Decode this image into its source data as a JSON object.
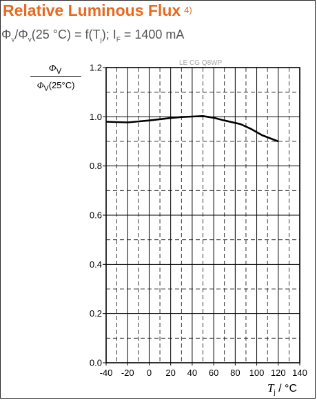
{
  "title": "Relative Luminous Flux",
  "title_footnote": "4)",
  "subtitle_parts": {
    "phi1": "Φ",
    "sub_v1": "v",
    "slash": "/",
    "phi2": "Φ",
    "sub_v2": "v",
    "condition": "(25 °C) = f(T",
    "sub_j": "j",
    "current_prefix": "); I",
    "sub_f": "F",
    "current": " = 1400 mA"
  },
  "watermark": "LE CG Q8WP",
  "y_axis_label": {
    "numerator_phi": "Φ",
    "numerator_sub": "V",
    "denominator_phi": "Φ",
    "denominator_sub": "V",
    "denominator_rest": "(25°C)"
  },
  "x_axis_label": {
    "symbol": "T",
    "sub": "j",
    "unit": " / °C"
  },
  "chart_data": {
    "type": "line",
    "title": "Relative Luminous Flux",
    "xlabel": "Tj / °C",
    "ylabel": "ΦV/ΦV(25°C)",
    "xlim": [
      -40,
      140
    ],
    "ylim": [
      0.0,
      1.2
    ],
    "x_ticks": [
      -40,
      -20,
      0,
      20,
      40,
      60,
      80,
      100,
      120,
      140
    ],
    "x_tick_labels": [
      "-40",
      "-20",
      "0",
      "20",
      "40",
      "60",
      "80",
      "100",
      "120",
      "140"
    ],
    "y_ticks": [
      0.0,
      0.2,
      0.4,
      0.6,
      0.8,
      1.0,
      1.2
    ],
    "y_tick_labels": [
      "0.0",
      "0.2",
      "0.4",
      "0.6",
      "0.8",
      "1.0",
      "1.2"
    ],
    "grid": true,
    "series": [
      {
        "x": [
          -40,
          -20,
          0,
          20,
          30,
          40,
          50,
          60,
          70,
          85,
          95,
          105,
          120
        ],
        "values": [
          0.98,
          0.977,
          0.985,
          0.995,
          0.999,
          1.001,
          1.003,
          0.996,
          0.985,
          0.97,
          0.95,
          0.925,
          0.9
        ],
        "color": "#000000"
      }
    ]
  },
  "colors": {
    "title": "#e8691f",
    "subtitle": "#555555",
    "watermark": "#a8a8a8",
    "line": "#000000",
    "grid": "#000000"
  }
}
